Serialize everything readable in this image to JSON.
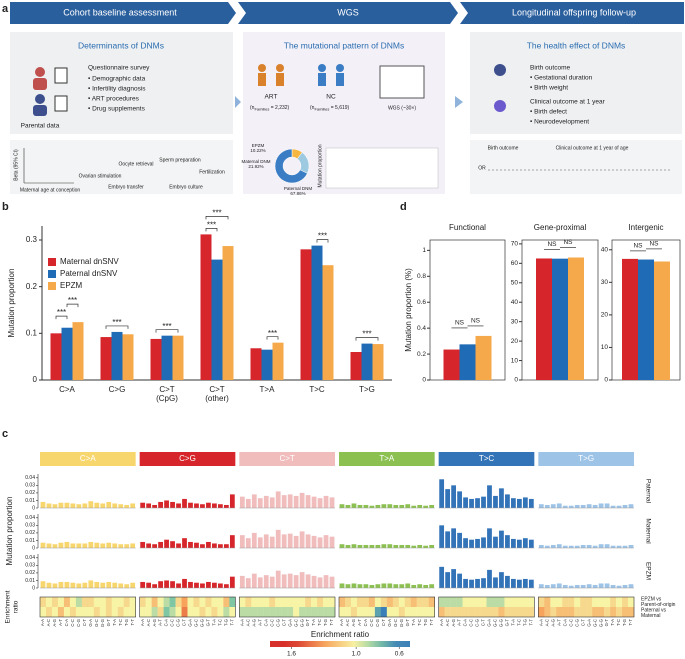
{
  "panel_labels": [
    "a",
    "b",
    "c",
    "d"
  ],
  "panel_a": {
    "steps": [
      "Cohort baseline assessment",
      "WGS",
      "Longitudinal offspring follow-up"
    ],
    "left": {
      "title": "Determinants of DNMs",
      "survey": "Questionnaire survey",
      "items": [
        "• Demographic data",
        "• Infertility diagnosis",
        "• ART procedures",
        "• Drug supplements"
      ],
      "parental": "Parental data",
      "age_axis": "Maternal age at conception",
      "beta": "Beta (95% CI)",
      "procedures": [
        "Ovarian stimulation",
        "Oocyte retrieval",
        "Sperm preparation",
        "Fertilization",
        "Embryo transfer",
        "Embryo culture"
      ]
    },
    "middle": {
      "title": "The mutational pattern of DNMs",
      "art": "ART",
      "nc": "NC",
      "n_prefix": "(n",
      "n_sub": "Families",
      "art_n": " = 2,232)",
      "nc_n": " = 5,619)",
      "wgs": "WGS (~30×)",
      "mp": "Mutation proportion"
    },
    "right": {
      "title": "The health effect of DNMs",
      "birth": "Birth outcome",
      "birth_items": [
        "• Gestational duration",
        "• Birth weight"
      ],
      "clinical": "Clinical outcome at 1 year",
      "clinical_items": [
        "• Birth defect",
        "• Neurodevelopment"
      ],
      "forest_labels": [
        "Birth outcome",
        "Clinical outcome at 1 year of age"
      ],
      "or": "OR"
    }
  },
  "chart_data": [
    {
      "type": "bar",
      "ylabel": "Mutation proportion",
      "categories": [
        [
          "C>A"
        ],
        [
          "C>G"
        ],
        [
          "C>T",
          "(CpG)"
        ],
        [
          "C>T",
          "(other)"
        ],
        [
          "T>A"
        ],
        [
          "T>C"
        ],
        [
          "T>G"
        ]
      ],
      "series": [
        {
          "name": "Maternal dnSNV",
          "color": "#d6262b",
          "values": [
            0.1,
            0.092,
            0.088,
            0.312,
            0.068,
            0.28,
            0.06
          ]
        },
        {
          "name": "Paternal dnSNV",
          "color": "#1f6bb5",
          "values": [
            0.112,
            0.103,
            0.095,
            0.258,
            0.065,
            0.288,
            0.078
          ]
        },
        {
          "name": "EPZM",
          "color": "#f6a94a",
          "values": [
            0.124,
            0.098,
            0.095,
            0.287,
            0.08,
            0.246,
            0.077
          ]
        }
      ],
      "ylim": [
        0,
        0.33
      ],
      "yticks": [
        0,
        0.1,
        0.2,
        0.3
      ],
      "annotations": [
        "***",
        "***",
        "***",
        "***",
        "***",
        "***",
        "***",
        "***",
        "***"
      ]
    },
    {
      "type": "bar",
      "title": "Functional",
      "ylabel": "Mutation proportion (%)",
      "values": [
        0.235,
        0.275,
        0.34
      ],
      "colors": [
        "#d6262b",
        "#1f6bb5",
        "#f6a94a"
      ],
      "ylim": [
        0,
        1.08
      ],
      "yticks": [
        0,
        0.2,
        0.4,
        0.6,
        0.8,
        1
      ],
      "annotations": [
        "NS",
        "NS"
      ]
    },
    {
      "type": "bar",
      "title": "Gene-proximal",
      "values": [
        62.5,
        62.4,
        63
      ],
      "colors": [
        "#d6262b",
        "#1f6bb5",
        "#f6a94a"
      ],
      "ylim": [
        0,
        72
      ],
      "yticks": [
        0,
        10,
        20,
        30,
        40,
        50,
        60,
        70
      ],
      "annotations": [
        "NS",
        "NS"
      ]
    },
    {
      "type": "bar",
      "title": "Intergenic",
      "values": [
        37.2,
        37,
        36.4
      ],
      "colors": [
        "#d6262b",
        "#1f6bb5",
        "#f6a94a"
      ],
      "ylim": [
        0,
        43
      ],
      "yticks": [
        0,
        10,
        20,
        30,
        40
      ],
      "annotations": [
        "NS",
        "NS"
      ]
    },
    {
      "type": "bar",
      "ylabel": "Mutation proportion",
      "groups": [
        "C>A",
        "C>G",
        "C>T",
        "T>A",
        "T>C",
        "T>G"
      ],
      "group_colors": [
        "#f8d66e",
        "#d6262b",
        "#f0bcbc",
        "#8cc152",
        "#3373b8",
        "#9dc3e6"
      ],
      "contexts": [
        "A-A",
        "A-C",
        "A-G",
        "A-T",
        "C-A",
        "C-C",
        "C-G",
        "C-T",
        "G-A",
        "G-C",
        "G-G",
        "G-T",
        "T-A",
        "T-C",
        "T-G",
        "T-T"
      ],
      "ylim": [
        0,
        0.045
      ],
      "yticks": [
        0,
        0.01,
        0.02,
        0.03,
        0.04
      ],
      "series": [
        {
          "name": "Paternal",
          "values": [
            0.008,
            0.006,
            0.005,
            0.007,
            0.007,
            0.006,
            0.005,
            0.006,
            0.009,
            0.007,
            0.006,
            0.008,
            0.006,
            0.005,
            0.004,
            0.006,
            0.007,
            0.006,
            0.004,
            0.008,
            0.01,
            0.008,
            0.006,
            0.012,
            0.007,
            0.006,
            0.005,
            0.007,
            0.006,
            0.005,
            0.004,
            0.018,
            0.015,
            0.012,
            0.018,
            0.013,
            0.016,
            0.014,
            0.022,
            0.017,
            0.018,
            0.016,
            0.02,
            0.017,
            0.015,
            0.013,
            0.016,
            0.014,
            0.005,
            0.004,
            0.006,
            0.004,
            0.004,
            0.003,
            0.004,
            0.005,
            0.005,
            0.004,
            0.004,
            0.005,
            0.003,
            0.004,
            0.003,
            0.004,
            0.038,
            0.025,
            0.03,
            0.022,
            0.014,
            0.012,
            0.013,
            0.015,
            0.03,
            0.016,
            0.026,
            0.018,
            0.013,
            0.012,
            0.014,
            0.012,
            0.005,
            0.004,
            0.005,
            0.006,
            0.003,
            0.003,
            0.004,
            0.004,
            0.005,
            0.004,
            0.006,
            0.006,
            0.003,
            0.003,
            0.004,
            0.005
          ]
        },
        {
          "name": "Maternal",
          "values": [
            0.007,
            0.006,
            0.005,
            0.007,
            0.008,
            0.006,
            0.006,
            0.006,
            0.008,
            0.007,
            0.006,
            0.007,
            0.006,
            0.005,
            0.005,
            0.006,
            0.008,
            0.006,
            0.005,
            0.008,
            0.011,
            0.009,
            0.006,
            0.013,
            0.008,
            0.007,
            0.005,
            0.008,
            0.006,
            0.005,
            0.005,
            0.017,
            0.017,
            0.013,
            0.02,
            0.014,
            0.018,
            0.015,
            0.024,
            0.018,
            0.019,
            0.016,
            0.022,
            0.018,
            0.016,
            0.014,
            0.017,
            0.015,
            0.005,
            0.004,
            0.005,
            0.004,
            0.004,
            0.004,
            0.004,
            0.005,
            0.005,
            0.004,
            0.004,
            0.004,
            0.003,
            0.004,
            0.003,
            0.004,
            0.03,
            0.022,
            0.026,
            0.02,
            0.013,
            0.011,
            0.012,
            0.014,
            0.026,
            0.015,
            0.023,
            0.017,
            0.012,
            0.011,
            0.013,
            0.011,
            0.004,
            0.003,
            0.004,
            0.005,
            0.003,
            0.003,
            0.003,
            0.004,
            0.004,
            0.003,
            0.005,
            0.005,
            0.003,
            0.003,
            0.003,
            0.004
          ]
        },
        {
          "name": "EPZM",
          "values": [
            0.009,
            0.007,
            0.006,
            0.008,
            0.008,
            0.007,
            0.006,
            0.007,
            0.01,
            0.008,
            0.007,
            0.008,
            0.007,
            0.006,
            0.005,
            0.007,
            0.008,
            0.007,
            0.005,
            0.009,
            0.01,
            0.009,
            0.006,
            0.012,
            0.008,
            0.007,
            0.006,
            0.008,
            0.007,
            0.006,
            0.005,
            0.015,
            0.016,
            0.013,
            0.019,
            0.014,
            0.017,
            0.015,
            0.023,
            0.018,
            0.019,
            0.017,
            0.021,
            0.018,
            0.016,
            0.014,
            0.017,
            0.015,
            0.006,
            0.005,
            0.006,
            0.005,
            0.005,
            0.004,
            0.005,
            0.006,
            0.006,
            0.005,
            0.005,
            0.006,
            0.004,
            0.005,
            0.004,
            0.005,
            0.028,
            0.021,
            0.025,
            0.019,
            0.012,
            0.011,
            0.012,
            0.013,
            0.024,
            0.014,
            0.021,
            0.016,
            0.012,
            0.011,
            0.012,
            0.011,
            0.005,
            0.004,
            0.005,
            0.006,
            0.004,
            0.003,
            0.004,
            0.004,
            0.005,
            0.004,
            0.006,
            0.006,
            0.004,
            0.003,
            0.004,
            0.005
          ]
        }
      ]
    },
    {
      "type": "heatmap",
      "ylabel": [
        "Enrichment",
        "ratio"
      ],
      "row_labels": [
        [
          "EPZM vs",
          "Parent-of-origin"
        ],
        [
          "Paternal vs",
          "Maternal"
        ]
      ],
      "values": [
        [
          1.1,
          1.0,
          1.1,
          1.0,
          1.2,
          1.0,
          0.9,
          1.1,
          1.1,
          1.0,
          1.0,
          1.1,
          1.0,
          1.0,
          1.1,
          1.0,
          1.1,
          1.0,
          1.2,
          1.0,
          0.9,
          0.8,
          1.1,
          1.3,
          1.0,
          1.1,
          1.0,
          1.1,
          1.0,
          1.0,
          1.2,
          0.8,
          1.0,
          1.1,
          1.0,
          1.0,
          1.0,
          1.1,
          1.0,
          1.0,
          1.0,
          1.0,
          1.0,
          1.1,
          1.0,
          1.1,
          1.0,
          1.0,
          1.2,
          1.1,
          1.0,
          1.1,
          1.1,
          1.2,
          1.0,
          1.1,
          1.2,
          1.1,
          1.0,
          1.1,
          1.2,
          1.1,
          1.1,
          1.2,
          0.9,
          0.9,
          0.9,
          0.9,
          1.0,
          1.0,
          1.0,
          1.0,
          0.9,
          0.9,
          0.9,
          1.0,
          1.0,
          1.0,
          1.0,
          1.0,
          1.1,
          1.2,
          1.0,
          1.0,
          1.1,
          1.1,
          1.0,
          1.1,
          1.1,
          1.0,
          1.0,
          1.0,
          1.1,
          1.0,
          1.1,
          1.0
        ],
        [
          1.0,
          1.1,
          1.0,
          1.2,
          1.0,
          1.1,
          1.0,
          1.0,
          1.0,
          1.1,
          1.0,
          1.1,
          1.0,
          1.1,
          1.0,
          1.0,
          1.0,
          1.0,
          0.9,
          1.1,
          0.8,
          0.9,
          1.0,
          1.4,
          1.0,
          1.0,
          1.1,
          1.0,
          1.1,
          1.0,
          0.9,
          1.0,
          0.9,
          0.9,
          0.9,
          0.9,
          0.9,
          0.9,
          0.9,
          0.9,
          0.9,
          1.0,
          0.9,
          0.9,
          0.9,
          0.9,
          0.9,
          0.9,
          1.0,
          1.0,
          1.1,
          1.0,
          1.0,
          1.0,
          0.7,
          0.6,
          1.0,
          1.0,
          1.1,
          1.0,
          1.0,
          1.0,
          1.0,
          1.0,
          1.2,
          1.1,
          1.1,
          1.1,
          1.1,
          1.1,
          1.1,
          1.1,
          1.1,
          1.1,
          1.2,
          1.1,
          1.1,
          1.1,
          1.1,
          1.1,
          1.3,
          1.2,
          1.1,
          1.2,
          1.2,
          1.2,
          1.1,
          1.1,
          1.1,
          1.2,
          1.2,
          1.1,
          1.2,
          1.1,
          1.2,
          1.2
        ]
      ],
      "colorbar_title": "Enrichment ratio",
      "clim": [
        1.8,
        0.5
      ],
      "cticks": [
        1.6,
        {
          "value": 1,
          "label": "1.0"
        },
        0.6
      ]
    },
    {
      "type": "pie",
      "labels": [
        "EPZM",
        "Maternal DNM",
        "Paternal DNM"
      ],
      "values": [
        10.22,
        21.92,
        67.86
      ],
      "value_labels": [
        "10.22%",
        "21.92%",
        "67.86%"
      ],
      "colors": [
        "#f5b642",
        "#9ecae1",
        "#3a7dc4"
      ]
    }
  ]
}
